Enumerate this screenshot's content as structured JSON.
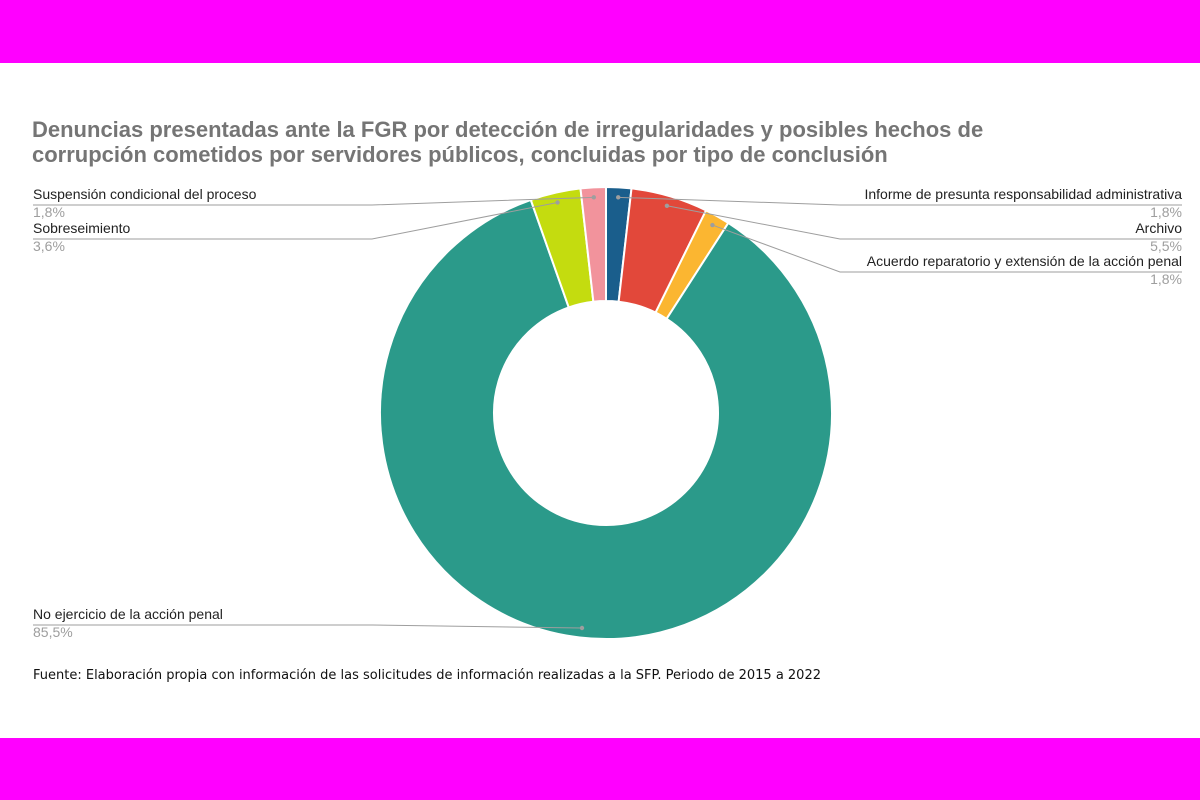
{
  "colors": {
    "band": "#ff00ff"
  },
  "title_lines": [
    "Denuncias presentadas ante la FGR por detección de irregularidades y posibles hechos de",
    "corrupción cometidos por servidores públicos, concluidas por tipo de conclusión"
  ],
  "chart_data": {
    "type": "pie",
    "style": "donut",
    "title": "Denuncias presentadas ante la FGR por detección de irregularidades y posibles hechos de corrupción cometidos por servidores públicos, concluidas por tipo de conclusión",
    "unit": "%",
    "slices": [
      {
        "label": "Informe de presunta responsabilidad administrativa",
        "value": 1.8,
        "display": "1,8%",
        "color": "#1a5e8c"
      },
      {
        "label": "Archivo",
        "value": 5.5,
        "display": "5,5%",
        "color": "#e2483a"
      },
      {
        "label": "Acuerdo reparatorio y extensión de la acción penal",
        "value": 1.8,
        "display": "1,8%",
        "color": "#fbb631"
      },
      {
        "label": "No ejercicio de la acción penal",
        "value": 85.5,
        "display": "85,5%",
        "color": "#2b9a8a"
      },
      {
        "label": "Sobreseimiento",
        "value": 3.6,
        "display": "3,6%",
        "color": "#c4dc0f"
      },
      {
        "label": "Suspensión condicional del proceso",
        "value": 1.8,
        "display": "1,8%",
        "color": "#f2939c"
      }
    ],
    "legend": "none"
  },
  "source": "Fuente: Elaboración propia con información de las solicitudes de información realizadas a la SFP. Periodo de 2015 a 2022"
}
